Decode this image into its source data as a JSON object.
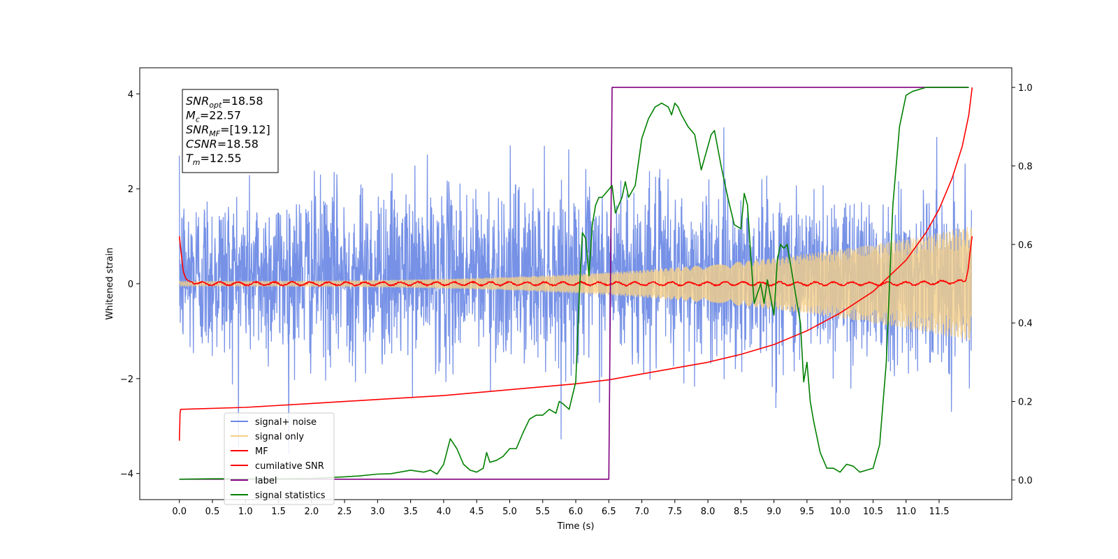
{
  "chart_data": {
    "type": "line",
    "title": "",
    "xlabel": "Time (s)",
    "ylabel": "Whitened strain",
    "xlim": [
      -0.6,
      12.6
    ],
    "ylim": [
      -4.55,
      4.55
    ],
    "y2lim": [
      -0.05,
      1.05
    ],
    "x_ticks": [
      "0.0",
      "0.5",
      "1.0",
      "1.5",
      "2.0",
      "2.5",
      "3.0",
      "3.5",
      "4.0",
      "4.5",
      "5.0",
      "5.5",
      "6.0",
      "6.5",
      "7.0",
      "7.5",
      "8.0",
      "8.5",
      "9.0",
      "9.5",
      "10.0",
      "10.5",
      "11.0",
      "11.5"
    ],
    "y_ticks": [
      "−4",
      "−2",
      "0",
      "2",
      "4"
    ],
    "y2_ticks": [
      "0.0",
      "0.2",
      "0.4",
      "0.6",
      "0.8",
      "1.0"
    ],
    "grid": false,
    "legend_position": "lower-left",
    "info_box": [
      {
        "sym": "SNR",
        "sub": "opt",
        "val": "=18.58"
      },
      {
        "sym": "M",
        "sub": "c",
        "val": "=22.57"
      },
      {
        "sym": "SNR",
        "sub": "MF",
        "val": "=[19.12]"
      },
      {
        "sym": "CSNR",
        "sub": "",
        "val": "=18.58"
      },
      {
        "sym": "T",
        "sub": "m",
        "val": "=12.55"
      }
    ],
    "series": [
      {
        "name": "signal+ noise",
        "color": "#6a88e4",
        "axis": "left",
        "kind": "noise",
        "x_range": [
          0,
          11.99
        ],
        "amplitude_std": 0.9,
        "offset": 0.2
      },
      {
        "name": "signal only",
        "color": "#f5cf88",
        "axis": "left",
        "kind": "chirp",
        "x_range": [
          0,
          11.99
        ],
        "amplitude_start": 0.05,
        "amplitude_end": 1.2
      },
      {
        "name": "MF",
        "color": "#ff0000",
        "axis": "left",
        "kind": "matched-filter",
        "x": [
          0.0,
          0.03,
          0.06,
          0.1,
          0.15,
          0.3,
          1.0,
          2.0,
          3.0,
          4.0,
          5.0,
          6.0,
          7.0,
          8.0,
          9.0,
          10.0,
          11.0,
          11.9,
          11.94,
          11.98,
          12.0
        ],
        "y": [
          1.0,
          0.6,
          0.25,
          0.1,
          0.05,
          0.0,
          0.0,
          0.0,
          0.0,
          0.0,
          0.0,
          0.0,
          0.0,
          0.0,
          0.0,
          0.0,
          0.0,
          0.05,
          0.3,
          0.8,
          1.0
        ]
      },
      {
        "name": "cumilative SNR",
        "color": "#ff0000",
        "axis": "right",
        "x": [
          0.0,
          0.01,
          0.02,
          1.0,
          2.0,
          3.0,
          4.0,
          5.0,
          6.0,
          6.5,
          7.0,
          7.5,
          8.0,
          8.5,
          9.0,
          9.5,
          10.0,
          10.5,
          11.0,
          11.3,
          11.5,
          11.7,
          11.85,
          11.95,
          12.0
        ],
        "y": [
          0.1,
          0.17,
          0.18,
          0.185,
          0.195,
          0.205,
          0.215,
          0.23,
          0.245,
          0.255,
          0.27,
          0.285,
          0.3,
          0.32,
          0.345,
          0.38,
          0.425,
          0.48,
          0.56,
          0.63,
          0.69,
          0.77,
          0.85,
          0.93,
          1.0
        ]
      },
      {
        "name": "label",
        "color": "#800080",
        "axis": "right",
        "x": [
          0.0,
          6.5,
          6.55,
          11.95
        ],
        "y": [
          0.002,
          0.002,
          1.0,
          1.0
        ]
      },
      {
        "name": "signal statistics",
        "color": "#008000",
        "axis": "right",
        "x": [
          0.0,
          0.5,
          1.0,
          1.5,
          2.0,
          2.5,
          2.7,
          3.0,
          3.2,
          3.5,
          3.7,
          3.8,
          3.9,
          4.0,
          4.1,
          4.2,
          4.3,
          4.4,
          4.5,
          4.6,
          4.65,
          4.7,
          4.8,
          4.9,
          5.0,
          5.1,
          5.2,
          5.3,
          5.4,
          5.5,
          5.6,
          5.7,
          5.75,
          5.8,
          5.9,
          6.0,
          6.05,
          6.1,
          6.15,
          6.2,
          6.25,
          6.3,
          6.35,
          6.4,
          6.5,
          6.55,
          6.6,
          6.7,
          6.75,
          6.8,
          6.9,
          7.0,
          7.1,
          7.2,
          7.3,
          7.4,
          7.45,
          7.5,
          7.55,
          7.6,
          7.7,
          7.8,
          7.9,
          8.0,
          8.05,
          8.1,
          8.2,
          8.3,
          8.4,
          8.5,
          8.55,
          8.6,
          8.65,
          8.7,
          8.8,
          8.85,
          8.9,
          9.0,
          9.05,
          9.1,
          9.15,
          9.2,
          9.3,
          9.4,
          9.45,
          9.5,
          9.55,
          9.6,
          9.7,
          9.8,
          9.9,
          10.0,
          10.1,
          10.2,
          10.3,
          10.4,
          10.5,
          10.6,
          10.7,
          10.8,
          10.9,
          11.0,
          11.1,
          11.3,
          11.5,
          11.7,
          11.95
        ],
        "y": [
          0.002,
          0.003,
          0.003,
          0.003,
          0.004,
          0.008,
          0.01,
          0.015,
          0.016,
          0.025,
          0.02,
          0.025,
          0.015,
          0.04,
          0.105,
          0.08,
          0.04,
          0.025,
          0.02,
          0.03,
          0.07,
          0.045,
          0.05,
          0.06,
          0.08,
          0.08,
          0.12,
          0.155,
          0.165,
          0.165,
          0.18,
          0.17,
          0.2,
          0.195,
          0.18,
          0.25,
          0.46,
          0.63,
          0.615,
          0.52,
          0.65,
          0.7,
          0.72,
          0.72,
          0.74,
          0.75,
          0.68,
          0.72,
          0.76,
          0.72,
          0.75,
          0.87,
          0.92,
          0.95,
          0.96,
          0.95,
          0.93,
          0.96,
          0.95,
          0.93,
          0.9,
          0.88,
          0.79,
          0.85,
          0.88,
          0.89,
          0.8,
          0.72,
          0.65,
          0.64,
          0.73,
          0.7,
          0.57,
          0.45,
          0.5,
          0.45,
          0.51,
          0.42,
          0.56,
          0.6,
          0.59,
          0.6,
          0.5,
          0.4,
          0.25,
          0.3,
          0.2,
          0.15,
          0.07,
          0.03,
          0.03,
          0.02,
          0.04,
          0.035,
          0.02,
          0.025,
          0.03,
          0.09,
          0.3,
          0.7,
          0.9,
          0.98,
          0.99,
          1.0,
          1.0,
          1.0,
          1.0
        ]
      }
    ]
  }
}
